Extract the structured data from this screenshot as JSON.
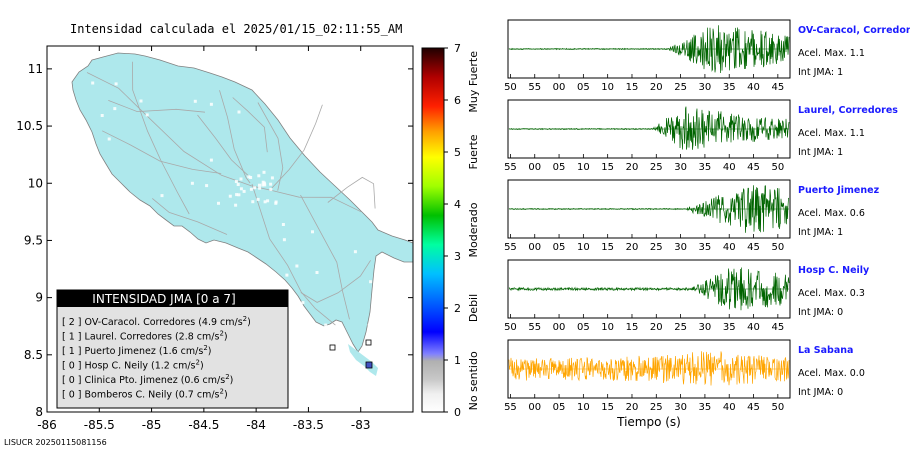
{
  "map": {
    "title": "Intensidad calculada el 2025/01/15_02:11:55_AM",
    "footer_id": "LISUCR 20250115081156",
    "colors": {
      "land": "#aee8ec",
      "water": "#ffffff",
      "roads": "#a9a9a9",
      "border": "#808080"
    }
  },
  "legend": {
    "header": "INTENSIDAD JMA [0 a 7]",
    "entries": [
      {
        "level": "[ 2 ]",
        "name": "OV-Caracol. Corredores",
        "value": "(4.9 cm/s",
        "exp": "2",
        "close": ")"
      },
      {
        "level": "[ 1 ]",
        "name": "Laurel. Corredores",
        "value": "(2.8 cm/s",
        "exp": "2",
        "close": ")"
      },
      {
        "level": "[ 1 ]",
        "name": "Puerto Jimenez",
        "value": "(1.6 cm/s",
        "exp": "2",
        "close": ")"
      },
      {
        "level": "[ 0 ]",
        "name": "Hosp C. Neily",
        "value": "(1.2 cm/s",
        "exp": "2",
        "close": ")"
      },
      {
        "level": "[ 0 ]",
        "name": "Clinica Pto. Jimenez",
        "value": "(0.6 cm/s",
        "exp": "2",
        "close": ")"
      },
      {
        "level": "[ 0 ]",
        "name": "Bomberos C. Neily",
        "value": "(0.7 cm/s",
        "exp": "2",
        "close": ")"
      }
    ]
  },
  "chart_data": [
    {
      "type": "map",
      "x_ticks": [
        "-86",
        "-85.5",
        "-85",
        "-84.5",
        "-84",
        "-83.5",
        "-83"
      ],
      "x_tick_values": [
        -86,
        -85.5,
        -85,
        -84.5,
        -84,
        -83.5,
        -83
      ],
      "y_ticks": [
        "8",
        "8.5",
        "9",
        "9.5",
        "10",
        "10.5",
        "11"
      ],
      "y_tick_values": [
        8,
        8.5,
        9,
        9.5,
        10,
        10.5,
        11
      ],
      "xlim": [
        -86,
        -82.5
      ],
      "ylim": [
        8,
        11.2
      ],
      "grid": false
    },
    {
      "type": "heatmap",
      "colorbar": true,
      "ticks": [
        "0",
        "1",
        "2",
        "3",
        "4",
        "5",
        "6",
        "7"
      ],
      "tick_values": [
        0,
        1,
        2,
        3,
        4,
        5,
        6,
        7
      ],
      "range": [
        0,
        7
      ],
      "categories": [
        "No sentido",
        "Debil",
        "Moderado",
        "Fuerte",
        "Muy Fuerte"
      ],
      "colors": [
        "#ffffff",
        "#b0b0b0",
        "#0000ff",
        "#00c0ff",
        "#00ff80",
        "#00c000",
        "#c8ff00",
        "#ffff00",
        "#ff8000",
        "#ff0000",
        "#a00000",
        "#300000"
      ]
    },
    {
      "type": "line",
      "title": "OV-Caracol, Corredores",
      "acel_label": "Acel. Max. 1.1",
      "int_label": "Int JMA: 1",
      "color": "#006400",
      "x_ticks": [
        "50",
        "55",
        "00",
        "05",
        "10",
        "15",
        "20",
        "25",
        "30",
        "35",
        "40",
        "45"
      ],
      "onset_frac": 0.565,
      "peak_frac": 0.73,
      "amplitude": 0.95,
      "noise": 0.02
    },
    {
      "type": "line",
      "title": "Laurel, Corredores",
      "acel_label": "Acel. Max. 1.1",
      "int_label": "Int JMA: 1",
      "color": "#006400",
      "x_ticks": [
        "55",
        "00",
        "05",
        "10",
        "15",
        "20",
        "25",
        "30",
        "35",
        "40",
        "45",
        "50"
      ],
      "onset_frac": 0.51,
      "peak_frac": 0.62,
      "amplitude": 0.85,
      "noise": 0.02
    },
    {
      "type": "line",
      "title": "Puerto Jimenez",
      "acel_label": "Acel. Max. 0.6",
      "int_label": "Int JMA: 1",
      "color": "#006400",
      "x_ticks": [
        "55",
        "00",
        "05",
        "10",
        "15",
        "20",
        "25",
        "30",
        "35",
        "40",
        "45",
        "50"
      ],
      "onset_frac": 0.62,
      "peak_frac": 0.86,
      "amplitude": 0.95,
      "noise": 0.02
    },
    {
      "type": "line",
      "title": "Hosp C. Neily",
      "acel_label": "Acel. Max. 0.3",
      "int_label": "Int JMA: 0",
      "color": "#006400",
      "x_ticks": [
        "50",
        "55",
        "00",
        "05",
        "10",
        "15",
        "20",
        "25",
        "30",
        "35",
        "40",
        "45"
      ],
      "onset_frac": 0.64,
      "peak_frac": 0.8,
      "amplitude": 0.85,
      "noise": 0.05
    },
    {
      "type": "line",
      "title": "La Sabana",
      "acel_label": "Acel. Max. 0.0",
      "int_label": "Int JMA: 0",
      "color": "#ffa500",
      "x_ticks": [
        "55",
        "00",
        "05",
        "10",
        "15",
        "20",
        "25",
        "30",
        "35",
        "40",
        "45",
        "50"
      ],
      "xlabel": "Tiempo (s)",
      "onset_frac": 0.0,
      "peak_frac": 0.72,
      "amplitude": 0.55,
      "noise": 0.35
    }
  ]
}
